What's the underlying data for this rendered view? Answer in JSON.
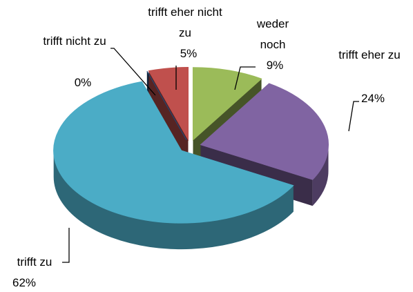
{
  "chart_data": {
    "type": "pie3d",
    "categories": [
      "trifft nicht zu",
      "trifft eher nicht zu",
      "weder noch",
      "trifft eher zu",
      "trifft zu"
    ],
    "values": [
      0,
      5,
      9,
      24,
      62
    ],
    "value_labels": [
      "0%",
      "5%",
      "9%",
      "24%",
      "62%"
    ],
    "colors": [
      "#1f497d",
      "#c0504d",
      "#9bbb59",
      "#8064a2",
      "#4bacc6"
    ]
  }
}
